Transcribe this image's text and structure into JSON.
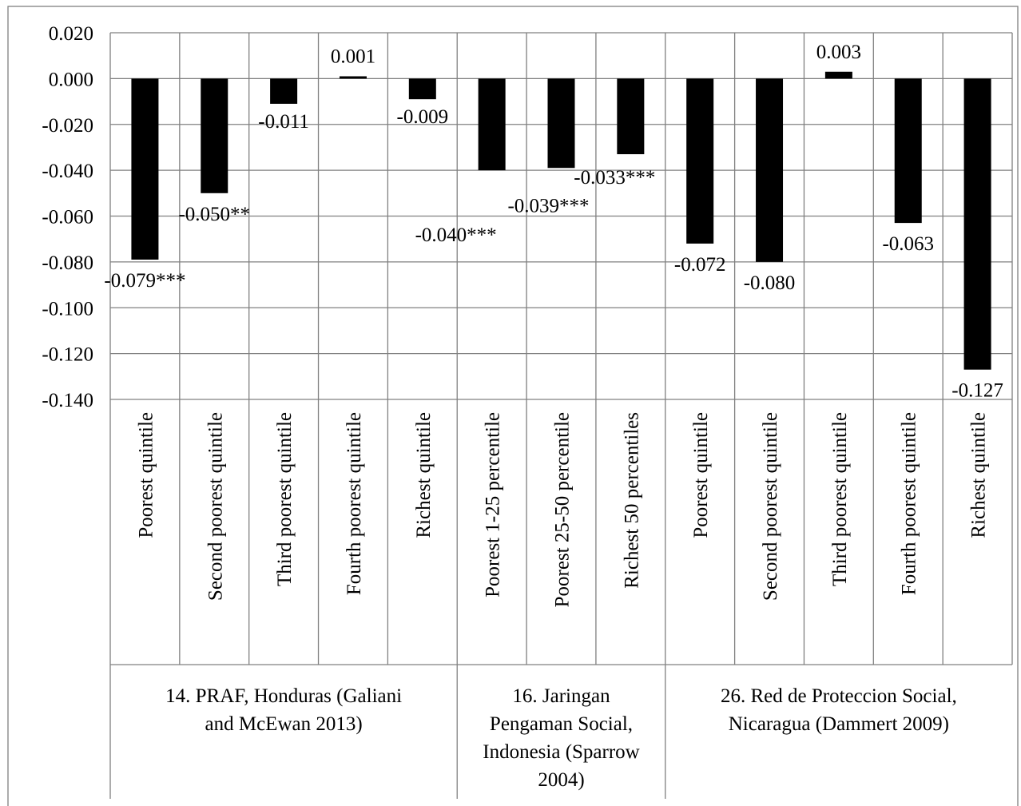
{
  "chart_data": {
    "type": "bar",
    "ylim": [
      -0.14,
      0.02
    ],
    "yticks": [
      0.02,
      0.0,
      -0.02,
      -0.04,
      -0.06,
      -0.08,
      -0.1,
      -0.12,
      -0.14
    ],
    "ytick_labels": [
      "0.020",
      "0.000",
      "-0.020",
      "-0.040",
      "-0.060",
      "-0.080",
      "-0.100",
      "-0.120",
      "-0.140"
    ],
    "grid": true,
    "bar_color": "#000000",
    "categories": [
      "Poorest quintile",
      "Second poorest quintile",
      "Third poorest quintile",
      "Fourth poorest quintile",
      "Richest quintile",
      "Poorest 1-25 percentile",
      "Poorest 25-50 percentile",
      "Richest 50 percentiles",
      "Poorest quintile",
      "Second poorest quintile",
      "Third poorest quintile",
      "Fourth poorest quintile",
      "Richest quintile"
    ],
    "values": [
      -0.079,
      -0.05,
      -0.011,
      0.001,
      -0.009,
      -0.04,
      -0.039,
      -0.033,
      -0.072,
      -0.08,
      0.003,
      -0.063,
      -0.127
    ],
    "data_labels": [
      "-0.079***",
      "-0.050**",
      "-0.011",
      "0.001",
      "-0.009",
      "-0.040***",
      "-0.039***",
      "-0.033***",
      "-0.072",
      "-0.080",
      "0.003",
      "-0.063",
      "-0.127"
    ],
    "groups": [
      {
        "lines": [
          "14. PRAF, Honduras (Galiani",
          "and McEwan 2013)"
        ],
        "start": 0,
        "end": 4
      },
      {
        "lines": [
          "16. Jaringan",
          "Pengaman Social,",
          "Indonesia (Sparrow",
          "2004)"
        ],
        "start": 5,
        "end": 7
      },
      {
        "lines": [
          "26. Red de Proteccion Social,",
          "Nicaragua (Dammert 2009)"
        ],
        "start": 8,
        "end": 12
      }
    ]
  }
}
